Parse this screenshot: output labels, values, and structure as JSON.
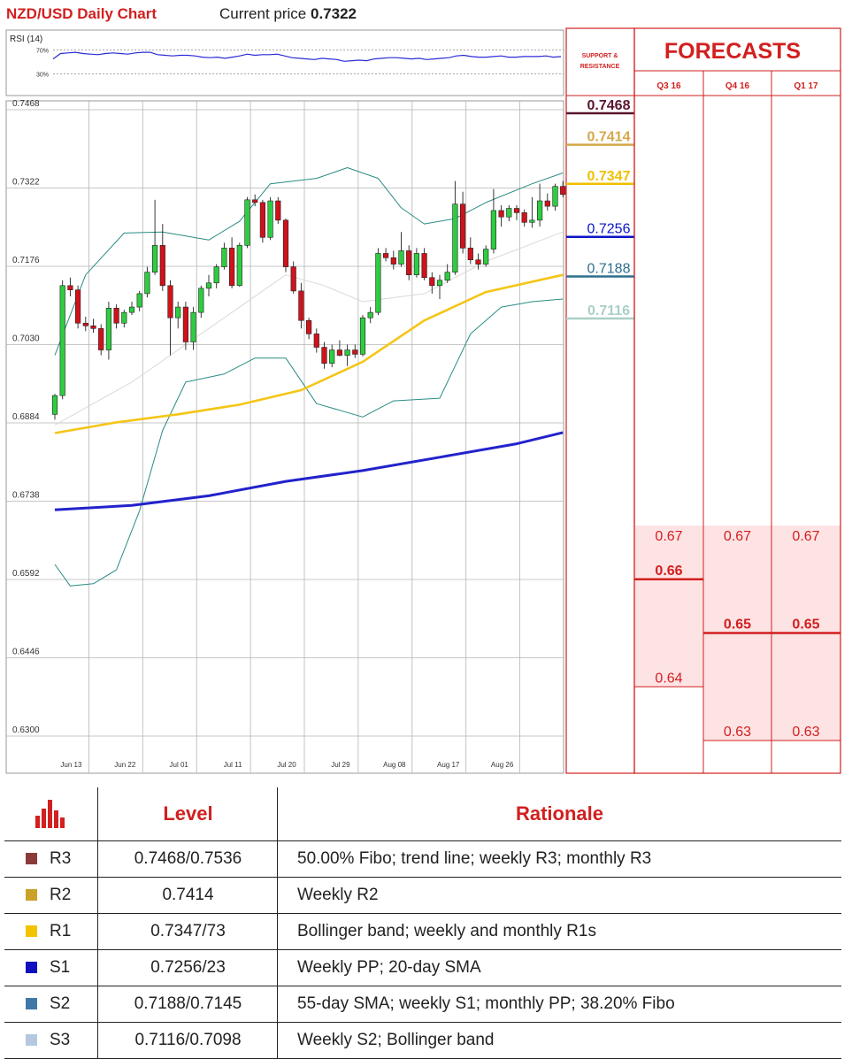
{
  "header": {
    "title": "NZD/USD Daily Chart",
    "price_label": "Current price",
    "price_value": "0.7322"
  },
  "colors": {
    "bull": "#2ecc40",
    "bear": "#d0121b",
    "sma55": "#f5c518",
    "sma200": "#2222cc",
    "bollinger": "#2a8c84",
    "sma20": "#d9d9d9",
    "rsi": "#2b2bd6",
    "accent": "#d21f1f",
    "forecast_fill": "#fde3e4"
  },
  "chart_data": [
    {
      "type": "line",
      "title": "RSI (14)",
      "yticks": [
        "70%",
        "30%"
      ],
      "ylim": [
        0,
        100
      ],
      "series": [
        {
          "name": "RSI (14)",
          "values": [
            55,
            64,
            65,
            66,
            64,
            63,
            62,
            64,
            65,
            64,
            63,
            65,
            66,
            66,
            62,
            61,
            60,
            61,
            61,
            60,
            58,
            57,
            58,
            56,
            58,
            60,
            63,
            61,
            62,
            62,
            63,
            60,
            57,
            56,
            55,
            54,
            56,
            55,
            54,
            51,
            52,
            53,
            52,
            55,
            56,
            57,
            57,
            56,
            55,
            56,
            54,
            55,
            56,
            57,
            60,
            61,
            59,
            58,
            58,
            59,
            60,
            58,
            58,
            59,
            59,
            59,
            60,
            58,
            59
          ]
        }
      ]
    },
    {
      "type": "candlestick",
      "title": "NZD/USD Daily Chart",
      "ylim": [
        0.63,
        0.7468
      ],
      "yticks": [
        "0.7468",
        "0.7322",
        "0.7176",
        "0.7030",
        "0.6884",
        "0.6738",
        "0.6592",
        "0.6446",
        "0.6300"
      ],
      "xticks": [
        "Jun 13",
        "Jun 22",
        "Jul 01",
        "Jul 11",
        "Jul 20",
        "Jul 29",
        "Aug 08",
        "Aug 17",
        "Aug 26"
      ],
      "xtick_index": [
        2,
        9,
        16,
        23,
        30,
        37,
        44,
        51,
        58
      ],
      "candles": [
        [
          0.69,
          0.6938,
          0.689,
          0.6935
        ],
        [
          0.6935,
          0.715,
          0.6928,
          0.714
        ],
        [
          0.714,
          0.7155,
          0.712,
          0.7132
        ],
        [
          0.7132,
          0.714,
          0.706,
          0.707
        ],
        [
          0.707,
          0.7082,
          0.7055,
          0.7065
        ],
        [
          0.7065,
          0.7078,
          0.7052,
          0.706
        ],
        [
          0.706,
          0.7068,
          0.701,
          0.702
        ],
        [
          0.702,
          0.711,
          0.7002,
          0.7098
        ],
        [
          0.7098,
          0.7105,
          0.706,
          0.707
        ],
        [
          0.707,
          0.7095,
          0.7062,
          0.709
        ],
        [
          0.709,
          0.711,
          0.7085,
          0.71
        ],
        [
          0.71,
          0.713,
          0.7092,
          0.7125
        ],
        [
          0.7125,
          0.7175,
          0.7118,
          0.7165
        ],
        [
          0.7165,
          0.73,
          0.716,
          0.7215
        ],
        [
          0.7215,
          0.7255,
          0.713,
          0.714
        ],
        [
          0.714,
          0.715,
          0.701,
          0.708
        ],
        [
          0.708,
          0.711,
          0.706,
          0.71
        ],
        [
          0.71,
          0.711,
          0.702,
          0.7035
        ],
        [
          0.7035,
          0.71,
          0.702,
          0.709
        ],
        [
          0.709,
          0.714,
          0.708,
          0.7135
        ],
        [
          0.7135,
          0.716,
          0.712,
          0.7145
        ],
        [
          0.7145,
          0.718,
          0.7135,
          0.7175
        ],
        [
          0.7175,
          0.722,
          0.717,
          0.721
        ],
        [
          0.721,
          0.723,
          0.7135,
          0.714
        ],
        [
          0.714,
          0.722,
          0.7138,
          0.7215
        ],
        [
          0.7215,
          0.7305,
          0.721,
          0.73
        ],
        [
          0.73,
          0.731,
          0.7288,
          0.7295
        ],
        [
          0.7295,
          0.73,
          0.722,
          0.723
        ],
        [
          0.723,
          0.7305,
          0.7225,
          0.7298
        ],
        [
          0.7298,
          0.7305,
          0.7255,
          0.7262
        ],
        [
          0.7262,
          0.7265,
          0.7165,
          0.7175
        ],
        [
          0.7175,
          0.7185,
          0.7125,
          0.713
        ],
        [
          0.713,
          0.7145,
          0.706,
          0.7075
        ],
        [
          0.7075,
          0.708,
          0.704,
          0.705
        ],
        [
          0.705,
          0.706,
          0.7015,
          0.7025
        ],
        [
          0.7025,
          0.7035,
          0.6985,
          0.6995
        ],
        [
          0.6995,
          0.703,
          0.6988,
          0.702
        ],
        [
          0.702,
          0.7038,
          0.7008,
          0.701
        ],
        [
          0.701,
          0.703,
          0.699,
          0.702
        ],
        [
          0.702,
          0.703,
          0.7005,
          0.7012
        ],
        [
          0.7012,
          0.7085,
          0.7008,
          0.708
        ],
        [
          0.708,
          0.71,
          0.707,
          0.709
        ],
        [
          0.709,
          0.721,
          0.7085,
          0.72
        ],
        [
          0.72,
          0.721,
          0.7185,
          0.7192
        ],
        [
          0.7192,
          0.7205,
          0.717,
          0.718
        ],
        [
          0.718,
          0.724,
          0.7175,
          0.7205
        ],
        [
          0.7205,
          0.7215,
          0.715,
          0.716
        ],
        [
          0.716,
          0.721,
          0.7155,
          0.72
        ],
        [
          0.72,
          0.721,
          0.715,
          0.7155
        ],
        [
          0.7155,
          0.7165,
          0.7125,
          0.714
        ],
        [
          0.714,
          0.716,
          0.7115,
          0.715
        ],
        [
          0.715,
          0.718,
          0.7145,
          0.7165
        ],
        [
          0.7165,
          0.7335,
          0.716,
          0.7292
        ],
        [
          0.7292,
          0.7315,
          0.72,
          0.721
        ],
        [
          0.721,
          0.723,
          0.718,
          0.7188
        ],
        [
          0.7188,
          0.72,
          0.717,
          0.718
        ],
        [
          0.718,
          0.7215,
          0.7175,
          0.7208
        ],
        [
          0.7208,
          0.732,
          0.72,
          0.728
        ],
        [
          0.728,
          0.729,
          0.725,
          0.7268
        ],
        [
          0.7268,
          0.729,
          0.726,
          0.7284
        ],
        [
          0.7284,
          0.729,
          0.7262,
          0.7276
        ],
        [
          0.7276,
          0.7282,
          0.725,
          0.7258
        ],
        [
          0.7258,
          0.7305,
          0.7248,
          0.7262
        ],
        [
          0.7262,
          0.733,
          0.725,
          0.7298
        ],
        [
          0.7298,
          0.7312,
          0.728,
          0.7288
        ],
        [
          0.7288,
          0.733,
          0.728,
          0.7325
        ],
        [
          0.7325,
          0.7335,
          0.7305,
          0.731
        ],
        [
          0.731,
          0.734,
          0.73,
          0.7322
        ]
      ],
      "series": [
        {
          "key": "sma55",
          "points": [
            [
              0,
              0.6865
            ],
            [
              8,
              0.6885
            ],
            [
              16,
              0.69
            ],
            [
              24,
              0.6918
            ],
            [
              32,
              0.6945
            ],
            [
              40,
              0.6998
            ],
            [
              48,
              0.7075
            ],
            [
              56,
              0.7128
            ],
            [
              66,
              0.716
            ]
          ]
        },
        {
          "key": "sma200",
          "points": [
            [
              0,
              0.6722
            ],
            [
              10,
              0.673
            ],
            [
              20,
              0.6748
            ],
            [
              30,
              0.6775
            ],
            [
              40,
              0.6795
            ],
            [
              50,
              0.682
            ],
            [
              60,
              0.6845
            ],
            [
              66,
              0.6866
            ]
          ]
        },
        {
          "key": "boll_upper",
          "points": [
            [
              0,
              0.701
            ],
            [
              4,
              0.716
            ],
            [
              9,
              0.7238
            ],
            [
              14,
              0.724
            ],
            [
              20,
              0.7225
            ],
            [
              24,
              0.726
            ],
            [
              28,
              0.733
            ],
            [
              34,
              0.734
            ],
            [
              38,
              0.736
            ],
            [
              42,
              0.734
            ],
            [
              45,
              0.7285
            ],
            [
              48,
              0.7255
            ],
            [
              52,
              0.7265
            ],
            [
              56,
              0.7295
            ],
            [
              62,
              0.733
            ],
            [
              66,
              0.735
            ]
          ]
        },
        {
          "key": "boll_lower",
          "points": [
            [
              0,
              0.662
            ],
            [
              2,
              0.658
            ],
            [
              5,
              0.6584
            ],
            [
              8,
              0.661
            ],
            [
              11,
              0.672
            ],
            [
              14,
              0.687
            ],
            [
              17,
              0.696
            ],
            [
              22,
              0.6975
            ],
            [
              26,
              0.7005
            ],
            [
              30,
              0.7005
            ],
            [
              34,
              0.692
            ],
            [
              40,
              0.6895
            ],
            [
              44,
              0.6925
            ],
            [
              50,
              0.693
            ],
            [
              54,
              0.705
            ],
            [
              58,
              0.71
            ],
            [
              62,
              0.711
            ],
            [
              66,
              0.7115
            ]
          ]
        },
        {
          "key": "sma20",
          "points": [
            [
              0,
              0.688
            ],
            [
              10,
              0.696
            ],
            [
              20,
              0.706
            ],
            [
              30,
              0.716
            ],
            [
              35,
              0.714
            ],
            [
              40,
              0.711
            ],
            [
              48,
              0.7125
            ],
            [
              56,
              0.7185
            ],
            [
              66,
              0.724
            ]
          ]
        }
      ]
    }
  ],
  "support_resistance": {
    "header": "SUPPORT & RESISTANCE",
    "levels": [
      {
        "label": "0.7468",
        "value": 0.7468,
        "color": "#5a1530",
        "bold": true
      },
      {
        "label": "0.7414",
        "value": 0.7414,
        "color": "#d4a84a",
        "bold": true
      },
      {
        "label": "0.7347",
        "value": 0.7347,
        "color": "#f0c000",
        "bold": true
      },
      {
        "label": "0.7256",
        "value": 0.7256,
        "color": "#0a14c8",
        "bold": false
      },
      {
        "label": "0.7188",
        "value": 0.7188,
        "color": "#2e6e8e",
        "bold": false
      },
      {
        "label": "0.7116",
        "value": 0.7116,
        "color": "#a9cfc6",
        "bold": true
      }
    ]
  },
  "forecasts": {
    "title": "FORECASTS",
    "columns": [
      {
        "label": "Q3 16",
        "high": "0.67",
        "mid": "0.66",
        "low": "0.64",
        "high_value": 0.67,
        "mid_value": 0.66,
        "low_value": 0.64
      },
      {
        "label": "Q4 16",
        "high": "0.67",
        "mid": "0.65",
        "low": "0.63",
        "high_value": 0.67,
        "mid_value": 0.65,
        "low_value": 0.63
      },
      {
        "label": "Q1 17",
        "high": "0.67",
        "mid": "0.65",
        "low": "0.63",
        "high_value": 0.67,
        "mid_value": 0.65,
        "low_value": 0.63
      }
    ]
  },
  "table": {
    "headers": {
      "level": "Level",
      "rationale": "Rationale"
    },
    "rows": [
      {
        "name": "R3",
        "color": "#8b3a3a",
        "level": "0.7468/0.7536",
        "rationale": "50.00% Fibo; trend line; weekly R3; monthly R3"
      },
      {
        "name": "R2",
        "color": "#c9a227",
        "level": "0.7414",
        "rationale": "Weekly R2"
      },
      {
        "name": "R1",
        "color": "#f2c300",
        "level": "0.7347/73",
        "rationale": "Bollinger band; weekly and monthly R1s"
      },
      {
        "name": "S1",
        "color": "#1010c0",
        "level": "0.7256/23",
        "rationale": "Weekly PP; 20-day SMA"
      },
      {
        "name": "S2",
        "color": "#3f78a8",
        "level": "0.7188/0.7145",
        "rationale": "55-day SMA; weekly S1; monthly PP; 38.20% Fibo"
      },
      {
        "name": "S3",
        "color": "#b4c8e0",
        "level": "0.7116/0.7098",
        "rationale": "Weekly S2; Bollinger band"
      }
    ]
  }
}
